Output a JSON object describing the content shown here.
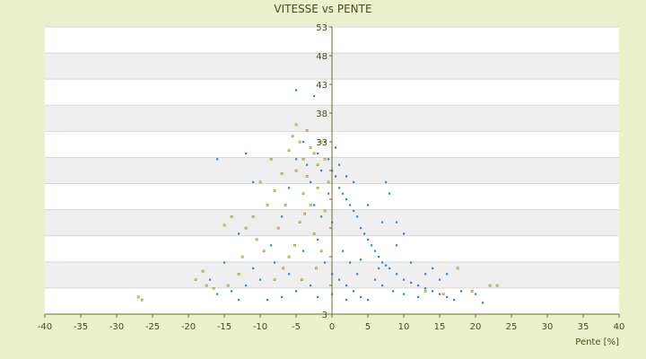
{
  "chart_data": {
    "type": "scatter",
    "title": "VITESSE vs PENTE",
    "xlabel": "Pente [%]",
    "ylabel": "",
    "xlim": [
      -40,
      40
    ],
    "ylim": [
      3,
      53
    ],
    "x_ticks": [
      -40,
      -35,
      -30,
      -25,
      -20,
      -15,
      -10,
      -5,
      0,
      5,
      10,
      15,
      20,
      25,
      30,
      35,
      40
    ],
    "y_ticks": [
      3,
      8,
      13,
      18,
      23,
      28,
      33,
      38,
      43,
      48,
      53
    ],
    "y_tick_labels": [
      "3",
      "",
      "",
      "",
      "",
      "",
      "33",
      "38",
      "43",
      "48",
      "53"
    ],
    "grid": "horizontal bands",
    "colors": {
      "background": "#ecf1cd",
      "plot_band_a": "#ffffff",
      "plot_band_b": "#efefef",
      "gridline": "#d8d8d8",
      "series_blue": "#2e86d9",
      "series_yellow": "#e9e02b",
      "axis": "#6b6b2b"
    },
    "series": [
      {
        "color": "#e9e02b",
        "points": [
          [
            -27,
            6
          ],
          [
            -26.5,
            5.5
          ],
          [
            -19,
            9
          ],
          [
            -18,
            10.5
          ],
          [
            -17.5,
            8
          ],
          [
            -16.5,
            7.5
          ],
          [
            -15,
            18.5
          ],
          [
            -14,
            20
          ],
          [
            -14.5,
            8
          ],
          [
            -13,
            10
          ],
          [
            -12,
            18
          ],
          [
            -11,
            20
          ],
          [
            -10,
            26
          ],
          [
            -9,
            22
          ],
          [
            -9.5,
            14
          ],
          [
            -8.5,
            30
          ],
          [
            -8,
            24.5
          ],
          [
            -7.5,
            18
          ],
          [
            -7,
            27.5
          ],
          [
            -6.5,
            22
          ],
          [
            -6,
            31.5
          ],
          [
            -6,
            13
          ],
          [
            -5.5,
            34
          ],
          [
            -5,
            36
          ],
          [
            -5,
            28
          ],
          [
            -4.5,
            33
          ],
          [
            -4.5,
            19
          ],
          [
            -4,
            30
          ],
          [
            -4,
            24
          ],
          [
            -3.5,
            35
          ],
          [
            -3.5,
            27
          ],
          [
            -3,
            32
          ],
          [
            -3,
            22
          ],
          [
            -2.5,
            31
          ],
          [
            -2.5,
            17
          ],
          [
            -2,
            29
          ],
          [
            -2,
            25
          ],
          [
            -1.5,
            33
          ],
          [
            -1.5,
            14
          ],
          [
            -1,
            30
          ],
          [
            -1,
            21
          ],
          [
            -0.5,
            26
          ],
          [
            -3.8,
            20.5
          ],
          [
            -5.2,
            15
          ],
          [
            -6.8,
            11
          ],
          [
            -8,
            9
          ],
          [
            -10.5,
            16
          ],
          [
            -12.5,
            13
          ],
          [
            -2.2,
            11
          ],
          [
            -4.2,
            9
          ],
          [
            17.5,
            11
          ],
          [
            19.5,
            7
          ],
          [
            22,
            8
          ],
          [
            23,
            8
          ],
          [
            13,
            7
          ],
          [
            15.5,
            6.5
          ]
        ]
      },
      {
        "color": "#2e86d9",
        "points": [
          [
            -5,
            42
          ],
          [
            -2.5,
            41
          ],
          [
            -16,
            30
          ],
          [
            -12,
            31
          ],
          [
            -11,
            26
          ],
          [
            -13,
            17
          ],
          [
            -15,
            12
          ],
          [
            -17,
            9
          ],
          [
            -14,
            7
          ],
          [
            -10,
            9
          ],
          [
            -8.5,
            15
          ],
          [
            -7,
            20
          ],
          [
            -6,
            25
          ],
          [
            -5,
            30
          ],
          [
            -4,
            33
          ],
          [
            -3.5,
            29
          ],
          [
            -3,
            26
          ],
          [
            -2.5,
            22
          ],
          [
            -2,
            31
          ],
          [
            -1.5,
            28
          ],
          [
            -1,
            33
          ],
          [
            -0.5,
            30
          ],
          [
            0,
            28
          ],
          [
            0.5,
            27
          ],
          [
            1,
            25
          ],
          [
            1.5,
            24
          ],
          [
            2,
            23
          ],
          [
            2.5,
            22
          ],
          [
            3,
            21
          ],
          [
            3.5,
            20
          ],
          [
            4,
            18
          ],
          [
            4.5,
            17
          ],
          [
            5,
            16
          ],
          [
            5.5,
            15
          ],
          [
            6,
            14
          ],
          [
            6.5,
            13
          ],
          [
            7,
            12
          ],
          [
            7.5,
            11.5
          ],
          [
            8,
            11
          ],
          [
            9,
            10
          ],
          [
            10,
            9
          ],
          [
            11,
            8.5
          ],
          [
            12,
            8
          ],
          [
            13,
            7.5
          ],
          [
            14,
            7
          ],
          [
            15,
            6.5
          ],
          [
            16,
            6
          ],
          [
            18,
            7
          ],
          [
            21,
            5
          ],
          [
            20,
            6.5
          ],
          [
            17,
            5.5
          ],
          [
            -1,
            12
          ],
          [
            0,
            10
          ],
          [
            1,
            9
          ],
          [
            2,
            8
          ],
          [
            3,
            7
          ],
          [
            4,
            6
          ],
          [
            5,
            5.5
          ],
          [
            -3,
            8
          ],
          [
            -5,
            7
          ],
          [
            -7,
            6
          ],
          [
            -9,
            5.5
          ],
          [
            -2,
            16
          ],
          [
            -4,
            14
          ],
          [
            0,
            19
          ],
          [
            1.5,
            14
          ],
          [
            -1.5,
            20
          ],
          [
            2.5,
            12
          ],
          [
            3.5,
            10
          ],
          [
            6,
            9
          ],
          [
            7,
            8
          ],
          [
            8.5,
            7
          ],
          [
            10,
            6.5
          ],
          [
            12,
            6
          ],
          [
            -6,
            10
          ],
          [
            -8,
            12
          ],
          [
            -11,
            11
          ],
          [
            -12,
            8
          ],
          [
            0.5,
            32
          ],
          [
            1,
            29
          ],
          [
            2,
            27
          ],
          [
            -0.5,
            24
          ],
          [
            3,
            26
          ],
          [
            5,
            22
          ],
          [
            7,
            19
          ],
          [
            9,
            15
          ],
          [
            11,
            12
          ],
          [
            13,
            10
          ],
          [
            15,
            9
          ],
          [
            8,
            24
          ],
          [
            7.5,
            26
          ],
          [
            9,
            19
          ],
          [
            10,
            17
          ],
          [
            -16,
            6.5
          ],
          [
            -13,
            5.5
          ],
          [
            4,
            12.5
          ],
          [
            6.5,
            11
          ],
          [
            2,
            5.5
          ],
          [
            0,
            6.5
          ],
          [
            -2,
            6
          ],
          [
            14,
            11
          ],
          [
            16,
            10
          ]
        ]
      }
    ]
  }
}
